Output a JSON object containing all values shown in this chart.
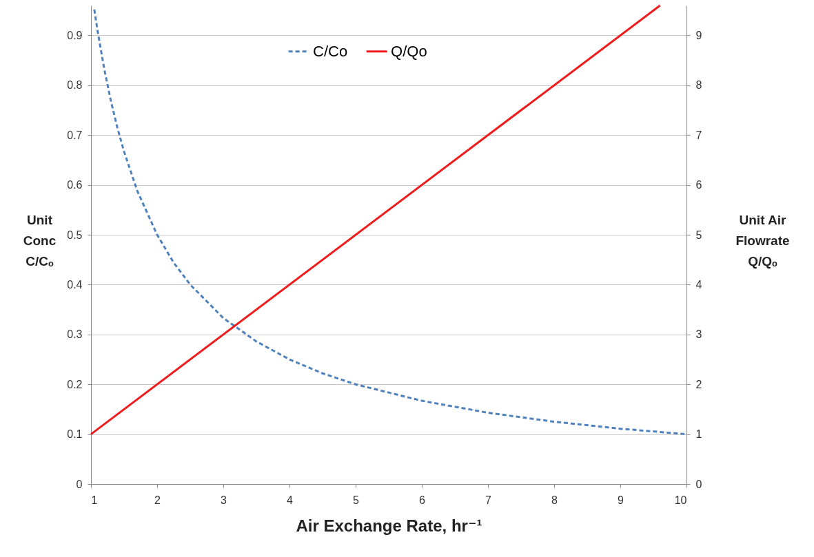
{
  "chart_data": {
    "type": "line",
    "xlabel": "Air Exchange Rate, hr⁻¹",
    "ylabel": "Unit\nConc\nC/Cₒ",
    "y2label": "Unit Air\nFlowrate\nQ/Qₒ",
    "xlim": [
      1,
      10
    ],
    "xticks": [
      1,
      2,
      3,
      4,
      5,
      6,
      7,
      8,
      9,
      10
    ],
    "ylim": [
      0,
      0.96
    ],
    "yticks": [
      0,
      0.1,
      0.2,
      0.3,
      0.4,
      0.5,
      0.6,
      0.7,
      0.8,
      0.9
    ],
    "y2lim": [
      0,
      9.6
    ],
    "y2ticks": [
      0,
      1,
      2,
      3,
      4,
      5,
      6,
      7,
      8,
      9
    ],
    "grid": "y",
    "legend": "top",
    "marker": "none",
    "series": [
      {
        "name": "C/Co",
        "color": "#4f81bd",
        "line_style": "dashed",
        "x": [
          1.05,
          1.1,
          1.2,
          1.3,
          1.4,
          1.5,
          1.7,
          2,
          2.25,
          2.5,
          3,
          3.5,
          4,
          4.5,
          5,
          6,
          7,
          8,
          9,
          10
        ],
        "values": [
          0.952,
          0.909,
          0.833,
          0.769,
          0.714,
          0.667,
          0.588,
          0.5,
          0.444,
          0.4,
          0.333,
          0.286,
          0.25,
          0.222,
          0.2,
          0.167,
          0.143,
          0.125,
          0.111,
          0.1
        ]
      },
      {
        "name": "Q/Qo",
        "color": "#ee1c1c",
        "line_style": "solid",
        "axis": "y2",
        "x": [
          1,
          9.6
        ],
        "values": [
          1,
          9.6
        ]
      }
    ]
  }
}
